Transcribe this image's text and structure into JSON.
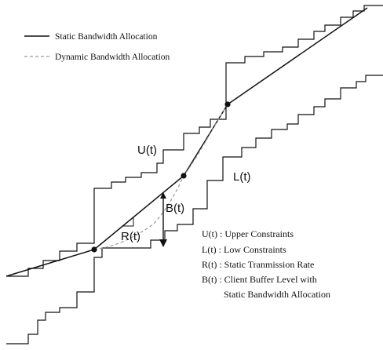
{
  "legend": {
    "static": "Static Bandwidth Allocation",
    "dynamic": "Dynamic Bandwidth Allocation"
  },
  "curve_labels": {
    "upper": "U(t)",
    "lower": "L(t)",
    "rate": "R(t)",
    "buffer": "B(t)"
  },
  "definitions": [
    "U(t) : Upper Constraints",
    "L(t) :  Low Constraints",
    "R(t) : Static Tranmission Rate",
    "B(t) : Client Buffer Level with",
    "Static Bandwidth Allocation"
  ],
  "colors": {
    "ink": "#111111",
    "dashed": "#999999",
    "background": "#ffffff"
  }
}
